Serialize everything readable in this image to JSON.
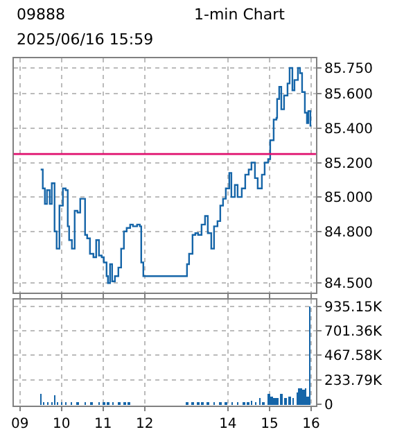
{
  "chart_data": [
    {
      "type": "step",
      "title": "09888",
      "subtitle": "1-min Chart",
      "annotations": [
        "2025/06/16 15:59"
      ],
      "color": "#1565a8",
      "x": [
        "2025-06-16T09:30",
        "2025-06-16T09:33",
        "2025-06-16T09:36",
        "2025-06-16T09:39",
        "2025-06-16T09:43",
        "2025-06-16T09:46",
        "2025-06-16T09:50",
        "2025-06-16T09:53",
        "2025-06-16T09:57",
        "2025-06-16T10:02",
        "2025-06-16T10:06",
        "2025-06-16T10:09",
        "2025-06-16T10:11",
        "2025-06-16T10:15",
        "2025-06-16T10:19",
        "2025-06-16T10:23",
        "2025-06-16T10:27",
        "2025-06-16T10:30",
        "2025-06-16T10:34",
        "2025-06-16T10:37",
        "2025-06-16T10:41",
        "2025-06-16T10:46",
        "2025-06-16T10:50",
        "2025-06-16T10:54",
        "2025-06-16T10:58",
        "2025-06-16T11:01",
        "2025-06-16T11:05",
        "2025-06-16T11:07",
        "2025-06-16T11:10",
        "2025-06-16T11:13",
        "2025-06-16T11:17",
        "2025-06-16T11:22",
        "2025-06-16T11:26",
        "2025-06-16T11:30",
        "2025-06-16T11:34",
        "2025-06-16T11:39",
        "2025-06-16T11:43",
        "2025-06-16T11:49",
        "2025-06-16T11:53",
        "2025-06-16T11:55",
        "2025-06-16T11:58",
        "2025-06-16T13:01",
        "2025-06-16T13:04",
        "2025-06-16T13:09",
        "2025-06-16T13:13",
        "2025-06-16T13:17",
        "2025-06-16T13:22",
        "2025-06-16T13:27",
        "2025-06-16T13:31",
        "2025-06-16T13:36",
        "2025-06-16T13:40",
        "2025-06-16T13:45",
        "2025-06-16T13:49",
        "2025-06-16T13:53",
        "2025-06-16T13:57",
        "2025-06-16T14:02",
        "2025-06-16T14:05",
        "2025-06-16T14:10",
        "2025-06-16T14:14",
        "2025-06-16T14:20",
        "2025-06-16T14:25",
        "2025-06-16T14:30",
        "2025-06-16T14:34",
        "2025-06-16T14:39",
        "2025-06-16T14:43",
        "2025-06-16T14:49",
        "2025-06-16T14:53",
        "2025-06-16T14:58",
        "2025-06-16T15:01",
        "2025-06-16T15:06",
        "2025-06-16T15:10",
        "2025-06-16T15:11",
        "2025-06-16T15:14",
        "2025-06-16T15:17",
        "2025-06-16T15:21",
        "2025-06-16T15:26",
        "2025-06-16T15:29",
        "2025-06-16T15:33",
        "2025-06-16T15:36",
        "2025-06-16T15:41",
        "2025-06-16T15:44",
        "2025-06-16T15:47",
        "2025-06-16T15:51",
        "2025-06-16T15:54",
        "2025-06-16T15:56",
        "2025-06-16T15:59"
      ],
      "values": [
        85.16,
        85.05,
        84.96,
        85.04,
        84.96,
        85.08,
        84.8,
        84.7,
        84.95,
        85.05,
        85.04,
        84.83,
        84.75,
        84.7,
        84.92,
        84.91,
        84.99,
        84.99,
        84.78,
        84.76,
        84.67,
        84.65,
        84.75,
        84.66,
        84.65,
        84.62,
        84.54,
        84.5,
        84.61,
        84.51,
        84.54,
        84.59,
        84.7,
        84.8,
        84.82,
        84.84,
        84.83,
        84.84,
        84.83,
        84.62,
        84.54,
        84.61,
        84.67,
        84.78,
        84.79,
        84.78,
        84.84,
        84.89,
        84.79,
        84.7,
        84.83,
        84.86,
        84.95,
        84.99,
        85.05,
        85.14,
        85.0,
        85.07,
        85.0,
        85.05,
        85.13,
        85.16,
        85.2,
        85.11,
        85.05,
        85.13,
        85.2,
        85.22,
        85.33,
        85.45,
        85.46,
        85.57,
        85.64,
        85.51,
        85.59,
        85.66,
        85.75,
        85.62,
        85.68,
        85.75,
        85.72,
        85.61,
        85.49,
        85.43,
        85.5,
        85.41
      ],
      "xlim": [
        "2025-06-16T08:51",
        "2025-06-16T16:07"
      ],
      "xticks": [
        {
          "value": "2025-06-16T09:00",
          "label": null
        },
        {
          "value": "2025-06-16T10:00",
          "label": null
        },
        {
          "value": "2025-06-16T11:00",
          "label": null
        },
        {
          "value": "2025-06-16T12:00",
          "label": null
        },
        {
          "value": "2025-06-16T14:00",
          "label": null
        },
        {
          "value": "2025-06-16T15:00",
          "label": null
        },
        {
          "value": "2025-06-16T16:00",
          "label": null
        }
      ],
      "ylim": [
        84.445,
        85.805
      ],
      "yticks": [
        {
          "value": 84.5,
          "label": "84.500"
        },
        {
          "value": 84.8,
          "label": "84.800"
        },
        {
          "value": 85.0,
          "label": "85.000"
        },
        {
          "value": 85.2,
          "label": "85.200"
        },
        {
          "value": 85.4,
          "label": "85.400"
        },
        {
          "value": 85.6,
          "label": "85.600"
        },
        {
          "value": 85.75,
          "label": "85.750"
        }
      ],
      "ref_lines": [
        {
          "axis": "y",
          "value": 85.25,
          "color": "#e0106e"
        }
      ],
      "grid": true,
      "tick_labels": "y"
    },
    {
      "type": "bar",
      "color": "#1565a8",
      "x": [
        "2025-06-16T09:30",
        "2025-06-16T09:34",
        "2025-06-16T09:40",
        "2025-06-16T09:46",
        "2025-06-16T09:50",
        "2025-06-16T09:54",
        "2025-06-16T10:00",
        "2025-06-16T10:06",
        "2025-06-16T10:14",
        "2025-06-16T10:23",
        "2025-06-16T10:34",
        "2025-06-16T10:43",
        "2025-06-16T10:54",
        "2025-06-16T11:01",
        "2025-06-16T11:07",
        "2025-06-16T11:14",
        "2025-06-16T11:23",
        "2025-06-16T11:31",
        "2025-06-16T11:37",
        "2025-06-16T13:01",
        "2025-06-16T13:09",
        "2025-06-16T13:17",
        "2025-06-16T13:23",
        "2025-06-16T13:31",
        "2025-06-16T13:40",
        "2025-06-16T13:49",
        "2025-06-16T13:57",
        "2025-06-16T14:06",
        "2025-06-16T14:14",
        "2025-06-16T14:23",
        "2025-06-16T14:29",
        "2025-06-16T14:34",
        "2025-06-16T14:40",
        "2025-06-16T14:46",
        "2025-06-16T14:51",
        "2025-06-16T14:59",
        "2025-06-16T15:03",
        "2025-06-16T15:07",
        "2025-06-16T15:11",
        "2025-06-16T15:17",
        "2025-06-16T15:23",
        "2025-06-16T15:29",
        "2025-06-16T15:34",
        "2025-06-16T15:40",
        "2025-06-16T15:43",
        "2025-06-16T15:46",
        "2025-06-16T15:49",
        "2025-06-16T15:52",
        "2025-06-16T15:55",
        "2025-06-16T15:58"
      ],
      "values": [
        100,
        20,
        20,
        30,
        90,
        20,
        30,
        20,
        20,
        20,
        30,
        20,
        20,
        30,
        30,
        20,
        20,
        20,
        20,
        30,
        20,
        30,
        30,
        30,
        20,
        30,
        30,
        30,
        20,
        30,
        30,
        40,
        30,
        60,
        30,
        100,
        70,
        60,
        60,
        100,
        60,
        80,
        60,
        120,
        150,
        160,
        140,
        160,
        80,
        935
      ],
      "xlim": [
        "2025-06-16T08:51",
        "2025-06-16T16:07"
      ],
      "xticks": [
        {
          "value": "2025-06-16T09:00",
          "label": "09"
        },
        {
          "value": "2025-06-16T10:00",
          "label": "10"
        },
        {
          "value": "2025-06-16T11:00",
          "label": "11"
        },
        {
          "value": "2025-06-16T12:00",
          "label": "12"
        },
        {
          "value": "2025-06-16T14:00",
          "label": "14"
        },
        {
          "value": "2025-06-16T15:00",
          "label": "15"
        },
        {
          "value": "2025-06-16T16:00",
          "label": "16"
        }
      ],
      "ylim": [
        -10,
        1000
      ],
      "yticks": [
        0,
        {
          "value": 233.79,
          "label": "233.79K"
        },
        {
          "value": 467.58,
          "label": "467.58K"
        },
        {
          "value": 701.36,
          "label": "701.36K"
        },
        {
          "value": 935.15,
          "label": "935.15K"
        }
      ],
      "grid": true
    }
  ]
}
